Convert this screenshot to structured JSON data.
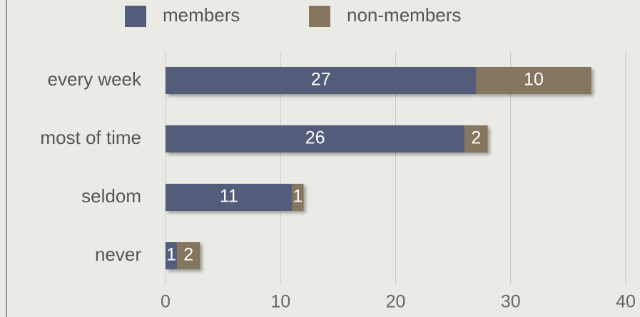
{
  "chart_data": {
    "type": "bar",
    "orientation": "horizontal",
    "stacked": true,
    "categories": [
      "every week",
      "most of time",
      "seldom",
      "never"
    ],
    "series": [
      {
        "name": "members",
        "color": "#535c7a",
        "values": [
          27,
          26,
          11,
          1
        ]
      },
      {
        "name": "non-members",
        "color": "#857660",
        "values": [
          10,
          2,
          1,
          2
        ]
      }
    ],
    "xlim": [
      0,
      40
    ],
    "xticks": [
      0,
      10,
      20,
      30,
      40
    ],
    "grid": true,
    "legend": "top"
  }
}
